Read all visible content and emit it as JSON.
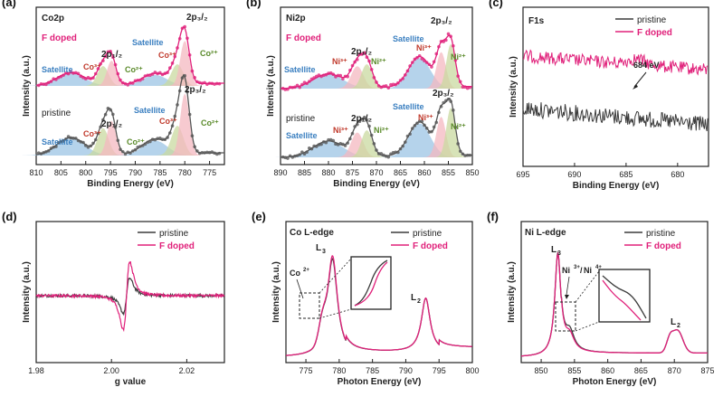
{
  "colors": {
    "pristine": "#3c3c3c",
    "f_doped": "#e0207a",
    "satellite_fill": "#9cc4e4",
    "co3_fill": "#f4b8c0",
    "co2_fill": "#c9d9a0",
    "label_blue": "#3a7fc0",
    "label_red": "#c0392b",
    "label_green": "#5a8a2a"
  },
  "chart_data": [
    {
      "panel": "(a)",
      "type": "line",
      "title": "Co2p",
      "xlabel": "Binding Energy (eV)",
      "ylabel": "Intensity (a.u.)",
      "xlim": [
        810,
        772
      ],
      "xticks": [
        810,
        805,
        800,
        795,
        790,
        785,
        780,
        775
      ],
      "series": [
        {
          "name": "F doped",
          "label": "F doped"
        },
        {
          "name": "pristine",
          "label": "pristine"
        }
      ],
      "peaks": {
        "satellite_1": 803,
        "co2_p12": 796.5,
        "co3_p12": 794.8,
        "satellite_2": 786,
        "co2_p32": 781.5,
        "co3_p32": 780.0
      },
      "annotations": [
        "Satellite",
        "Co",
        "Co",
        "2p",
        "Satellite",
        "Co",
        "Co",
        "2p"
      ],
      "ion_labels": {
        "co2": "Co²⁺",
        "co3": "Co³⁺"
      },
      "subshell_labels": {
        "p12": "2p₁/₂",
        "p32": "2p₃/₂"
      }
    },
    {
      "panel": "(b)",
      "type": "line",
      "title": "Ni2p",
      "xlabel": "Binding Energy (eV)",
      "ylabel": "Intensity (a.u.)",
      "xlim": [
        890,
        850
      ],
      "xticks": [
        890,
        885,
        880,
        875,
        870,
        865,
        860,
        855,
        850
      ],
      "series": [
        {
          "name": "F doped",
          "label": "F doped"
        },
        {
          "name": "pristine",
          "label": "pristine"
        }
      ],
      "peaks": {
        "satellite_1": 880,
        "ni3_p12": 874,
        "ni2_p12": 872,
        "satellite_2": 861,
        "ni3_p32": 856.5,
        "ni2_p32": 854.5
      },
      "ion_labels": {
        "ni3": "Ni³⁺",
        "ni2": "Ni²⁺"
      },
      "subshell_labels": {
        "p12": "2p₁/₂",
        "p32": "2p₃/₂"
      },
      "satellite_label": "Satellite"
    },
    {
      "panel": "(c)",
      "type": "line",
      "title": "F1s",
      "xlabel": "Binding Energy (eV)",
      "ylabel": "Intensity (a.u.)",
      "xlim": [
        695,
        677
      ],
      "xticks": [
        695,
        690,
        685,
        680
      ],
      "legend": [
        "pristine",
        "F doped"
      ],
      "legend_loc": "top-right",
      "annotation": {
        "text": "684 eV",
        "x": 684
      }
    },
    {
      "panel": "(d)",
      "type": "line",
      "title": "",
      "xlabel": "g value",
      "ylabel": "Intensity (a.u.)",
      "xlim": [
        1.98,
        2.03
      ],
      "xticks": [
        "1.98",
        "2.00",
        "2.02"
      ],
      "legend": [
        "pristine",
        "F doped"
      ],
      "legend_loc": "top-right",
      "center_g": 2.004
    },
    {
      "panel": "(e)",
      "type": "line",
      "title": "Co L-edge",
      "xlabel": "Photon Energy (eV)",
      "ylabel": "Intensity (a.u.)",
      "xlim": [
        772,
        800
      ],
      "xticks": [
        775,
        780,
        785,
        790,
        795,
        800
      ],
      "legend": [
        "pristine",
        "F doped"
      ],
      "legend_loc": "top-right",
      "peaks": {
        "L3": 779.0,
        "L2": 793.0,
        "Co2_shoulder": 777.5
      },
      "labels": {
        "L3": "L",
        "L3_sub": "3",
        "L2": "L",
        "L2_sub": "2",
        "co2": "Co",
        "co2_sup": "2+"
      }
    },
    {
      "panel": "(f)",
      "type": "line",
      "title": "Ni L-edge",
      "xlabel": "Photon Energy (eV)",
      "ylabel": "Intensity (a.u.)",
      "xlim": [
        847,
        875
      ],
      "xticks": [
        850,
        855,
        860,
        865,
        870,
        875
      ],
      "legend": [
        "pristine",
        "F doped"
      ],
      "legend_loc": "top-right",
      "peaks": {
        "L3": 852.5,
        "L2": 870.0
      },
      "labels": {
        "L3": "L",
        "L3_sub": "3",
        "L2": "L",
        "L2_sub": "2",
        "ni": "Ni",
        "ni3_sup": "3+",
        "slash": "/",
        "ni4_sup": "4+"
      }
    }
  ],
  "panel_labels": [
    "(a)",
    "(b)",
    "(c)",
    "(d)",
    "(e)",
    "(f)"
  ]
}
